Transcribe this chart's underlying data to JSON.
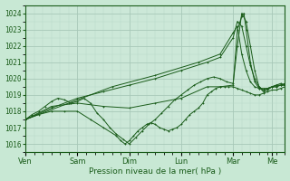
{
  "xlabel": "Pression niveau de la mer( hPa )",
  "bg_color": "#c8e8d4",
  "plot_bg_color": "#cce8d8",
  "grid_major_color": "#a8c8b8",
  "grid_minor_color": "#b8d8c8",
  "line_color": "#1a5c1a",
  "ylim": [
    1015.5,
    1024.5
  ],
  "yticks": [
    1016,
    1017,
    1018,
    1019,
    1020,
    1021,
    1022,
    1023,
    1024
  ],
  "x_day_labels": [
    "Ven",
    "Sam",
    "Dim",
    "Lun",
    "Mar",
    "Me"
  ],
  "x_day_positions": [
    0,
    24,
    48,
    72,
    96,
    114
  ],
  "xlim_max": 120,
  "series": [
    {
      "name": "line_main_wavy",
      "points": [
        [
          0,
          1017.5
        ],
        [
          3,
          1017.8
        ],
        [
          6,
          1018.0
        ],
        [
          9,
          1018.3
        ],
        [
          12,
          1018.6
        ],
        [
          15,
          1018.8
        ],
        [
          18,
          1018.7
        ],
        [
          21,
          1018.5
        ],
        [
          24,
          1018.6
        ],
        [
          27,
          1018.8
        ],
        [
          30,
          1018.5
        ],
        [
          33,
          1017.9
        ],
        [
          36,
          1017.5
        ],
        [
          39,
          1017.0
        ],
        [
          42,
          1016.6
        ],
        [
          45,
          1016.3
        ],
        [
          48,
          1016.0
        ],
        [
          51,
          1016.4
        ],
        [
          54,
          1016.8
        ],
        [
          57,
          1017.2
        ],
        [
          60,
          1017.5
        ],
        [
          63,
          1017.9
        ],
        [
          66,
          1018.3
        ],
        [
          69,
          1018.7
        ],
        [
          72,
          1019.0
        ],
        [
          75,
          1019.3
        ],
        [
          78,
          1019.6
        ],
        [
          81,
          1019.8
        ],
        [
          84,
          1020.0
        ],
        [
          87,
          1020.1
        ],
        [
          90,
          1020.0
        ],
        [
          93,
          1019.8
        ],
        [
          96,
          1019.7
        ],
        [
          98,
          1022.0
        ],
        [
          100,
          1024.0
        ],
        [
          102,
          1023.5
        ],
        [
          104,
          1022.0
        ],
        [
          106,
          1020.5
        ],
        [
          108,
          1019.5
        ],
        [
          110,
          1019.2
        ],
        [
          112,
          1019.3
        ],
        [
          114,
          1019.5
        ],
        [
          116,
          1019.6
        ],
        [
          118,
          1019.7
        ],
        [
          120,
          1019.6
        ]
      ]
    },
    {
      "name": "line_upper_diagonal",
      "points": [
        [
          0,
          1017.5
        ],
        [
          12,
          1018.2
        ],
        [
          24,
          1018.8
        ],
        [
          36,
          1019.2
        ],
        [
          48,
          1019.6
        ],
        [
          60,
          1020.0
        ],
        [
          72,
          1020.5
        ],
        [
          84,
          1021.0
        ],
        [
          90,
          1021.3
        ],
        [
          96,
          1022.5
        ],
        [
          98,
          1023.5
        ],
        [
          100,
          1023.2
        ],
        [
          102,
          1022.0
        ],
        [
          104,
          1020.8
        ],
        [
          106,
          1020.0
        ],
        [
          108,
          1019.5
        ],
        [
          110,
          1019.3
        ],
        [
          112,
          1019.4
        ],
        [
          114,
          1019.5
        ],
        [
          116,
          1019.5
        ],
        [
          118,
          1019.6
        ],
        [
          120,
          1019.7
        ]
      ]
    },
    {
      "name": "line_lower_dip",
      "points": [
        [
          0,
          1017.5
        ],
        [
          6,
          1017.8
        ],
        [
          12,
          1018.0
        ],
        [
          18,
          1018.0
        ],
        [
          24,
          1018.0
        ],
        [
          30,
          1017.5
        ],
        [
          36,
          1017.0
        ],
        [
          42,
          1016.5
        ],
        [
          44,
          1016.2
        ],
        [
          46,
          1016.0
        ],
        [
          48,
          1016.2
        ],
        [
          50,
          1016.5
        ],
        [
          52,
          1016.8
        ],
        [
          54,
          1017.0
        ],
        [
          56,
          1017.2
        ],
        [
          58,
          1017.3
        ],
        [
          60,
          1017.2
        ],
        [
          62,
          1017.0
        ],
        [
          64,
          1016.9
        ],
        [
          66,
          1016.8
        ],
        [
          68,
          1016.9
        ],
        [
          70,
          1017.0
        ],
        [
          72,
          1017.2
        ],
        [
          74,
          1017.5
        ],
        [
          76,
          1017.8
        ],
        [
          78,
          1018.0
        ],
        [
          80,
          1018.2
        ],
        [
          82,
          1018.5
        ],
        [
          84,
          1019.0
        ],
        [
          86,
          1019.2
        ],
        [
          88,
          1019.4
        ],
        [
          90,
          1019.5
        ],
        [
          92,
          1019.5
        ],
        [
          94,
          1019.5
        ],
        [
          96,
          1019.5
        ],
        [
          98,
          1019.4
        ],
        [
          100,
          1019.3
        ],
        [
          102,
          1019.2
        ],
        [
          104,
          1019.1
        ],
        [
          106,
          1019.0
        ],
        [
          108,
          1019.0
        ],
        [
          110,
          1019.1
        ],
        [
          112,
          1019.2
        ],
        [
          114,
          1019.3
        ],
        [
          116,
          1019.3
        ],
        [
          118,
          1019.4
        ],
        [
          120,
          1019.5
        ]
      ]
    },
    {
      "name": "line_mid_gentle",
      "points": [
        [
          0,
          1017.5
        ],
        [
          12,
          1018.3
        ],
        [
          24,
          1018.5
        ],
        [
          36,
          1018.3
        ],
        [
          48,
          1018.2
        ],
        [
          60,
          1018.5
        ],
        [
          72,
          1018.8
        ],
        [
          84,
          1019.5
        ],
        [
          90,
          1019.5
        ],
        [
          96,
          1019.6
        ],
        [
          98,
          1023.0
        ],
        [
          100,
          1023.8
        ],
        [
          101,
          1024.0
        ],
        [
          102,
          1023.0
        ],
        [
          104,
          1021.0
        ],
        [
          106,
          1019.8
        ],
        [
          108,
          1019.4
        ],
        [
          110,
          1019.3
        ],
        [
          112,
          1019.4
        ],
        [
          114,
          1019.5
        ],
        [
          116,
          1019.6
        ],
        [
          118,
          1019.6
        ],
        [
          120,
          1019.6
        ]
      ]
    },
    {
      "name": "line_straight_upper",
      "points": [
        [
          0,
          1017.5
        ],
        [
          20,
          1018.5
        ],
        [
          40,
          1019.5
        ],
        [
          60,
          1020.2
        ],
        [
          80,
          1021.0
        ],
        [
          90,
          1021.5
        ],
        [
          96,
          1022.8
        ],
        [
          98,
          1023.2
        ],
        [
          100,
          1021.5
        ],
        [
          102,
          1020.5
        ],
        [
          104,
          1019.8
        ],
        [
          106,
          1019.5
        ],
        [
          108,
          1019.4
        ],
        [
          110,
          1019.4
        ],
        [
          112,
          1019.4
        ],
        [
          114,
          1019.5
        ],
        [
          116,
          1019.5
        ],
        [
          118,
          1019.6
        ],
        [
          120,
          1019.6
        ]
      ]
    }
  ]
}
